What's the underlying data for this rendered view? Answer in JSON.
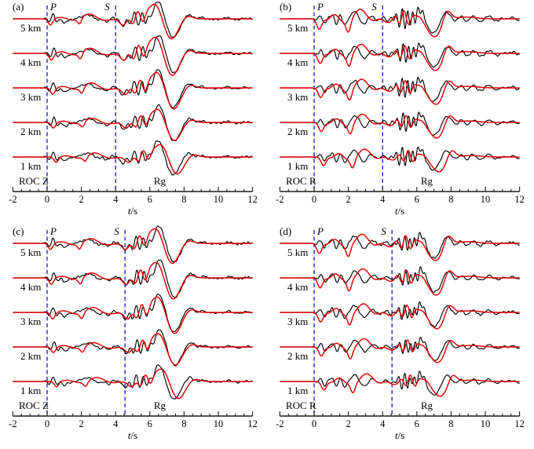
{
  "colors": {
    "observed": "#000000",
    "synthetic": "#e60000",
    "phase_marker": "#2323cc",
    "axis": "#1a1a1a"
  },
  "chart_data": {
    "type": "line",
    "x_axis": {
      "label_italic": "t",
      "label_rest": "/s",
      "min": -2,
      "max": 12,
      "major_tick_step": 2,
      "minor_tick_step": 0.5,
      "tick_labels": [
        "-2",
        "0",
        "2",
        "4",
        "6",
        "8",
        "10",
        "12"
      ]
    },
    "panels": [
      {
        "label": "(a)",
        "station": "ROC Z",
        "phases": {
          "p": {
            "label": "P",
            "time": 0
          },
          "s": {
            "label": "S",
            "time": 4.0
          }
        },
        "rg": {
          "label": "Rg",
          "time": 6.6
        },
        "black_base": [
          [
            0.35,
            6,
            2.0,
            0.35,
            0
          ],
          [
            1.0,
            -5,
            0,
            0.22,
            0
          ],
          [
            1.8,
            3,
            0,
            0.3,
            0
          ],
          [
            2.4,
            5,
            0.55,
            0.9,
            0
          ],
          [
            3.5,
            -3,
            1.3,
            0.4,
            0
          ],
          [
            4.45,
            -9,
            0,
            0.22,
            0
          ],
          [
            4.95,
            -6,
            2.0,
            0.4,
            90
          ],
          [
            5.55,
            7,
            2.4,
            0.5,
            0
          ],
          [
            6.05,
            -5,
            0,
            0.18,
            0
          ],
          [
            6.5,
            23,
            0,
            0.42,
            0
          ],
          [
            7.35,
            -24,
            0,
            0.5,
            0
          ],
          [
            8.3,
            6,
            0,
            0.35,
            0
          ],
          [
            9.0,
            2,
            1.0,
            0.8,
            0
          ],
          [
            10.5,
            1.5,
            0.9,
            1.2,
            0
          ]
        ],
        "red_base": [
          [
            0.25,
            -8,
            0,
            0.18,
            0
          ],
          [
            0.9,
            2,
            0,
            0.4,
            0
          ],
          [
            1.95,
            -7,
            0,
            0.16,
            0
          ],
          [
            2.5,
            6,
            0.4,
            1.0,
            0
          ],
          [
            4.5,
            -8,
            0,
            0.3,
            0
          ],
          [
            5.35,
            9,
            1.5,
            0.5,
            0
          ],
          [
            6.35,
            20,
            0,
            0.5,
            0
          ],
          [
            7.3,
            -26,
            0,
            0.55,
            0
          ],
          [
            8.25,
            4,
            0,
            0.4,
            0
          ]
        ],
        "traces": [
          {
            "label": "5 km",
            "black": {
              "scale": 1.0,
              "dt": 0.0
            },
            "red": {
              "scale": 1.0,
              "dt": -0.05
            }
          },
          {
            "label": "4 km",
            "black": {
              "scale": 1.05,
              "dt": 0.05
            },
            "red": {
              "scale": 1.1,
              "dt": 0.0
            }
          },
          {
            "label": "3 km",
            "black": {
              "scale": 1.05,
              "dt": 0.0
            },
            "red": {
              "scale": 1.05,
              "dt": 0.08
            }
          },
          {
            "label": "2 km",
            "black": {
              "scale": 1.0,
              "dt": 0.05
            },
            "red": {
              "scale": 0.9,
              "dt": 0.12
            }
          },
          {
            "label": "1 km",
            "black": {
              "scale": 0.95,
              "dt": 0.0
            },
            "red": {
              "scale": 0.85,
              "dt": 0.28
            }
          }
        ]
      },
      {
        "label": "(b)",
        "station": "ROC R",
        "phases": {
          "p": {
            "label": "P",
            "time": 0
          },
          "s": {
            "label": "S",
            "time": 4.0
          }
        },
        "rg": {
          "label": "Rg",
          "time": 6.6
        },
        "black_base": [
          [
            0.6,
            -6,
            1.8,
            0.4,
            0
          ],
          [
            1.3,
            -7,
            2.0,
            0.5,
            0
          ],
          [
            2.35,
            9,
            0.8,
            0.7,
            0
          ],
          [
            3.3,
            3,
            1.1,
            0.6,
            0
          ],
          [
            4.3,
            -3,
            1.6,
            0.4,
            0
          ],
          [
            5.15,
            11,
            2.8,
            0.45,
            0
          ],
          [
            5.8,
            8,
            3.2,
            0.45,
            60
          ],
          [
            6.25,
            13,
            0,
            0.28,
            0
          ],
          [
            6.95,
            -17,
            0,
            0.5,
            0
          ],
          [
            7.65,
            10,
            0,
            0.3,
            0
          ],
          [
            8.6,
            4,
            1.3,
            0.7,
            0
          ],
          [
            10.2,
            3.5,
            1.0,
            1.6,
            0
          ],
          [
            11.6,
            3,
            1.2,
            0.8,
            0
          ]
        ],
        "red_base": [
          [
            0.3,
            -12,
            0,
            0.2,
            0
          ],
          [
            1.2,
            5,
            0.7,
            0.5,
            0
          ],
          [
            2.0,
            -13,
            0,
            0.18,
            0
          ],
          [
            2.7,
            11,
            0.45,
            0.8,
            0
          ],
          [
            4.3,
            -4,
            0.7,
            0.6,
            0
          ],
          [
            5.25,
            9,
            1.7,
            0.5,
            0
          ],
          [
            6.1,
            5,
            0,
            0.3,
            0
          ],
          [
            7.05,
            -21,
            0,
            0.6,
            0
          ],
          [
            7.75,
            13,
            0,
            0.33,
            0
          ],
          [
            8.9,
            2,
            0,
            0.8,
            0
          ]
        ],
        "traces": [
          {
            "label": "5 km",
            "black": {
              "scale": 1.05,
              "dt": 0.0
            },
            "red": {
              "scale": 1.1,
              "dt": 0.0
            }
          },
          {
            "label": "4 km",
            "black": {
              "scale": 1.0,
              "dt": 0.05
            },
            "red": {
              "scale": 1.05,
              "dt": 0.05
            }
          },
          {
            "label": "3 km",
            "black": {
              "scale": 1.0,
              "dt": 0.0
            },
            "red": {
              "scale": 1.0,
              "dt": 0.08
            }
          },
          {
            "label": "2 km",
            "black": {
              "scale": 0.95,
              "dt": 0.05
            },
            "red": {
              "scale": 0.95,
              "dt": 0.12
            }
          },
          {
            "label": "1 km",
            "black": {
              "scale": 0.95,
              "dt": 0.0
            },
            "red": {
              "scale": 0.9,
              "dt": 0.25
            }
          }
        ]
      },
      {
        "label": "(c)",
        "station": "ROC Z",
        "phases": {
          "p": {
            "label": "P",
            "time": 0
          },
          "s": {
            "label": "S",
            "time": 4.55
          }
        },
        "rg": {
          "label": "Rg",
          "time": 6.6
        },
        "black_base": [
          [
            0.35,
            6,
            2.0,
            0.35,
            0
          ],
          [
            1.0,
            -5,
            0,
            0.22,
            0
          ],
          [
            1.8,
            3,
            0,
            0.3,
            0
          ],
          [
            2.4,
            5,
            0.55,
            0.9,
            0
          ],
          [
            3.6,
            -3,
            1.3,
            0.4,
            0
          ],
          [
            4.6,
            -8,
            0,
            0.24,
            0
          ],
          [
            5.1,
            -6,
            2.0,
            0.4,
            90
          ],
          [
            5.6,
            7,
            2.4,
            0.5,
            0
          ],
          [
            6.1,
            -5,
            0,
            0.18,
            0
          ],
          [
            6.55,
            23,
            0,
            0.42,
            0
          ],
          [
            7.4,
            -24,
            0,
            0.5,
            0
          ],
          [
            8.35,
            6,
            0,
            0.35,
            0
          ],
          [
            9.1,
            2,
            1.0,
            0.8,
            0
          ],
          [
            10.6,
            1.5,
            0.9,
            1.2,
            0
          ]
        ],
        "red_base": [
          [
            0.25,
            -8,
            0,
            0.18,
            0
          ],
          [
            0.9,
            2,
            0,
            0.4,
            0
          ],
          [
            1.95,
            -7,
            0,
            0.16,
            0
          ],
          [
            2.6,
            6,
            0.4,
            1.0,
            0
          ],
          [
            4.65,
            -8,
            0,
            0.3,
            0
          ],
          [
            5.45,
            9,
            1.5,
            0.5,
            0
          ],
          [
            6.4,
            20,
            0,
            0.5,
            0
          ],
          [
            7.35,
            -26,
            0,
            0.55,
            0
          ],
          [
            8.3,
            4,
            0,
            0.4,
            0
          ]
        ],
        "traces": [
          {
            "label": "5 km",
            "black": {
              "scale": 1.0,
              "dt": 0.0
            },
            "red": {
              "scale": 1.0,
              "dt": -0.05
            }
          },
          {
            "label": "4 km",
            "black": {
              "scale": 1.05,
              "dt": 0.05
            },
            "red": {
              "scale": 1.05,
              "dt": 0.0
            }
          },
          {
            "label": "3 km",
            "black": {
              "scale": 1.05,
              "dt": 0.0
            },
            "red": {
              "scale": 1.05,
              "dt": 0.08
            }
          },
          {
            "label": "2 km",
            "black": {
              "scale": 1.0,
              "dt": 0.05
            },
            "red": {
              "scale": 0.9,
              "dt": 0.12
            }
          },
          {
            "label": "1 km",
            "black": {
              "scale": 0.95,
              "dt": 0.0
            },
            "red": {
              "scale": 0.85,
              "dt": 0.3
            }
          }
        ]
      },
      {
        "label": "(d)",
        "station": "ROC R",
        "phases": {
          "p": {
            "label": "P",
            "time": 0
          },
          "s": {
            "label": "S",
            "time": 4.55
          }
        },
        "rg": {
          "label": "Rg",
          "time": 6.6
        },
        "black_base": [
          [
            0.6,
            -6,
            1.8,
            0.4,
            0
          ],
          [
            1.3,
            -7,
            2.0,
            0.5,
            0
          ],
          [
            2.35,
            9,
            0.8,
            0.7,
            0
          ],
          [
            3.4,
            3,
            1.1,
            0.6,
            0
          ],
          [
            4.5,
            -3,
            1.6,
            0.4,
            0
          ],
          [
            5.3,
            10,
            2.8,
            0.45,
            0
          ],
          [
            5.9,
            8,
            3.2,
            0.45,
            60
          ],
          [
            6.3,
            12,
            0,
            0.28,
            0
          ],
          [
            7.0,
            -18,
            0,
            0.5,
            0
          ],
          [
            7.7,
            10,
            0,
            0.3,
            0
          ],
          [
            8.6,
            3.5,
            1.3,
            0.7,
            0
          ],
          [
            10.2,
            3,
            1.0,
            1.6,
            0
          ],
          [
            11.6,
            2.5,
            1.2,
            0.8,
            0
          ]
        ],
        "red_base": [
          [
            0.3,
            -12,
            0,
            0.2,
            0
          ],
          [
            1.2,
            5,
            0.7,
            0.5,
            0
          ],
          [
            2.0,
            -13,
            0,
            0.18,
            0
          ],
          [
            2.8,
            11,
            0.45,
            0.8,
            0
          ],
          [
            4.4,
            -4,
            0.7,
            0.6,
            0
          ],
          [
            5.35,
            9,
            1.7,
            0.5,
            0
          ],
          [
            6.2,
            5,
            0,
            0.3,
            0
          ],
          [
            7.1,
            -21,
            0,
            0.6,
            0
          ],
          [
            7.8,
            13,
            0,
            0.33,
            0
          ],
          [
            9.0,
            2,
            0,
            0.8,
            0
          ]
        ],
        "traces": [
          {
            "label": "5 km",
            "black": {
              "scale": 1.05,
              "dt": 0.0
            },
            "red": {
              "scale": 1.05,
              "dt": 0.0
            }
          },
          {
            "label": "4 km",
            "black": {
              "scale": 1.0,
              "dt": 0.05
            },
            "red": {
              "scale": 1.05,
              "dt": 0.05
            }
          },
          {
            "label": "3 km",
            "black": {
              "scale": 1.0,
              "dt": 0.0
            },
            "red": {
              "scale": 1.0,
              "dt": 0.08
            }
          },
          {
            "label": "2 km",
            "black": {
              "scale": 0.95,
              "dt": 0.05
            },
            "red": {
              "scale": 0.95,
              "dt": 0.12
            }
          },
          {
            "label": "1 km",
            "black": {
              "scale": 0.95,
              "dt": 0.0
            },
            "red": {
              "scale": 0.9,
              "dt": 0.27
            }
          }
        ]
      }
    ]
  }
}
